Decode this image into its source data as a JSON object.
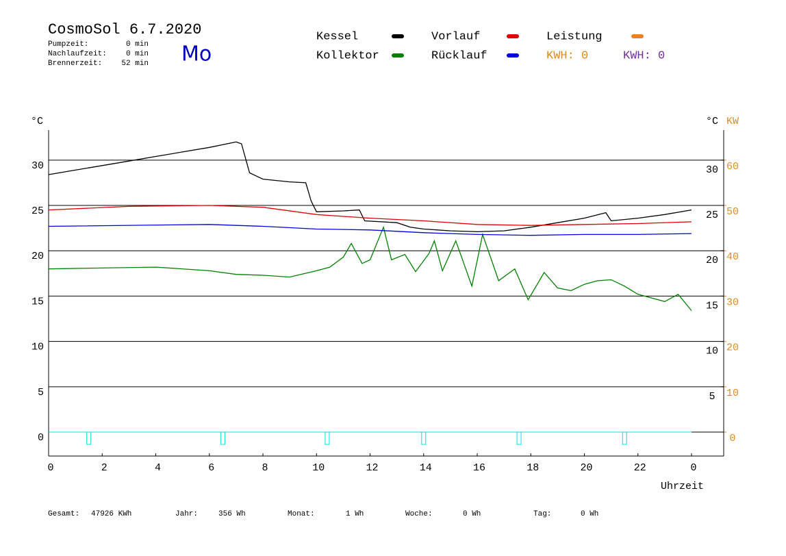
{
  "header": {
    "title": "CosmoSol 6.7.2020",
    "status": [
      {
        "label": "Pumpzeit:",
        "value": "0 min"
      },
      {
        "label": "Nachlaufzeit:",
        "value": "0 min"
      },
      {
        "label": "Brennerzeit:",
        "value": "52 min"
      }
    ],
    "day": "Mo"
  },
  "chart_data": {
    "type": "line",
    "y_unit": "°C",
    "y2_unit_c": "°C",
    "y2_unit": "KW",
    "x_label": "Uhrzeit",
    "xlim": [
      0,
      25.2
    ],
    "xticks": [
      0,
      2,
      4,
      6,
      8,
      10,
      12,
      14,
      16,
      18,
      20,
      22,
      {
        "value": 24,
        "label": "0"
      }
    ],
    "ylim": [
      -2.64,
      33.31
    ],
    "yticks": [
      0,
      5,
      10,
      15,
      20,
      25,
      30
    ],
    "yticks_right": [
      5,
      10,
      15,
      20,
      25,
      30
    ],
    "y2lim": [
      -5.28,
      66.62
    ],
    "y2ticks": [
      0,
      10,
      20,
      30,
      40,
      50,
      60
    ],
    "y2_color": "#e08a1e",
    "grid": true,
    "series": [
      {
        "name": "Kessel",
        "color": "#000000",
        "x": [
          0,
          1,
          2,
          3,
          4,
          5,
          6,
          7,
          7.2,
          7.5,
          8,
          9,
          9.6,
          9.8,
          10,
          11,
          11.6,
          11.8,
          13,
          13.5,
          14,
          15,
          16,
          17,
          18,
          19,
          20,
          20.8,
          21,
          22,
          23,
          24
        ],
        "values": [
          28.4,
          28.9,
          29.4,
          29.9,
          30.4,
          30.9,
          31.4,
          32.0,
          31.8,
          28.6,
          27.9,
          27.6,
          27.5,
          25.5,
          24.3,
          24.4,
          24.5,
          23.3,
          23.1,
          22.6,
          22.4,
          22.2,
          22.1,
          22.2,
          22.6,
          23.1,
          23.6,
          24.2,
          23.3,
          23.6,
          24.0,
          24.5
        ]
      },
      {
        "name": "Kollektor",
        "color": "#008000",
        "x": [
          0,
          2,
          4,
          6,
          7,
          8,
          9,
          10,
          10.5,
          11,
          11.3,
          11.7,
          12,
          12.5,
          12.8,
          13.3,
          13.7,
          14.2,
          14.4,
          14.7,
          15.2,
          15.8,
          16.2,
          16.8,
          17.4,
          17.9,
          18.5,
          19,
          19.5,
          20,
          20.5,
          21,
          21.5,
          22,
          23,
          23.5,
          24
        ],
        "values": [
          18.0,
          18.1,
          18.2,
          17.8,
          17.4,
          17.3,
          17.1,
          17.8,
          18.2,
          19.3,
          20.8,
          18.6,
          19.0,
          22.6,
          19.0,
          19.6,
          17.7,
          19.7,
          21.1,
          17.8,
          21.1,
          16.1,
          21.8,
          16.7,
          18.0,
          14.6,
          17.6,
          15.9,
          15.6,
          16.3,
          16.7,
          16.8,
          16.1,
          15.2,
          14.4,
          15.2,
          13.4
        ]
      },
      {
        "name": "Vorlauf",
        "color": "#e00000",
        "x": [
          0,
          3,
          6,
          8,
          10,
          12,
          14,
          16,
          18,
          20,
          22,
          24
        ],
        "values": [
          24.5,
          24.9,
          25.0,
          24.8,
          24.0,
          23.6,
          23.3,
          22.9,
          22.8,
          22.9,
          23.0,
          23.2
        ]
      },
      {
        "name": "Rücklauf",
        "color": "#0000e0",
        "x": [
          0,
          6,
          8,
          10,
          12,
          14,
          16,
          18,
          20,
          22,
          24
        ],
        "values": [
          22.7,
          22.9,
          22.7,
          22.4,
          22.3,
          22.0,
          21.8,
          21.7,
          21.8,
          21.8,
          21.9
        ]
      },
      {
        "name": "Leistung",
        "color": "#f08020",
        "axis": "y2",
        "x": [],
        "values": []
      }
    ],
    "kwh_labels": [
      {
        "text": "KWH: 0",
        "color": "#e08a1e"
      },
      {
        "text": "KWH: 0",
        "color": "#7030a0"
      }
    ],
    "pump_color": "#00e0e0",
    "pump_marks": [
      1.5,
      6.5,
      10.4,
      14.0,
      17.56,
      21.5
    ]
  },
  "footer": [
    {
      "label": "Gesamt:",
      "value": "47926 KWh"
    },
    {
      "label": "Jahr:",
      "value": "356 Wh"
    },
    {
      "label": "Monat:",
      "value": "1 Wh"
    },
    {
      "label": "Woche:",
      "value": "0 Wh"
    },
    {
      "label": "Tag:",
      "value": "0 Wh"
    }
  ]
}
